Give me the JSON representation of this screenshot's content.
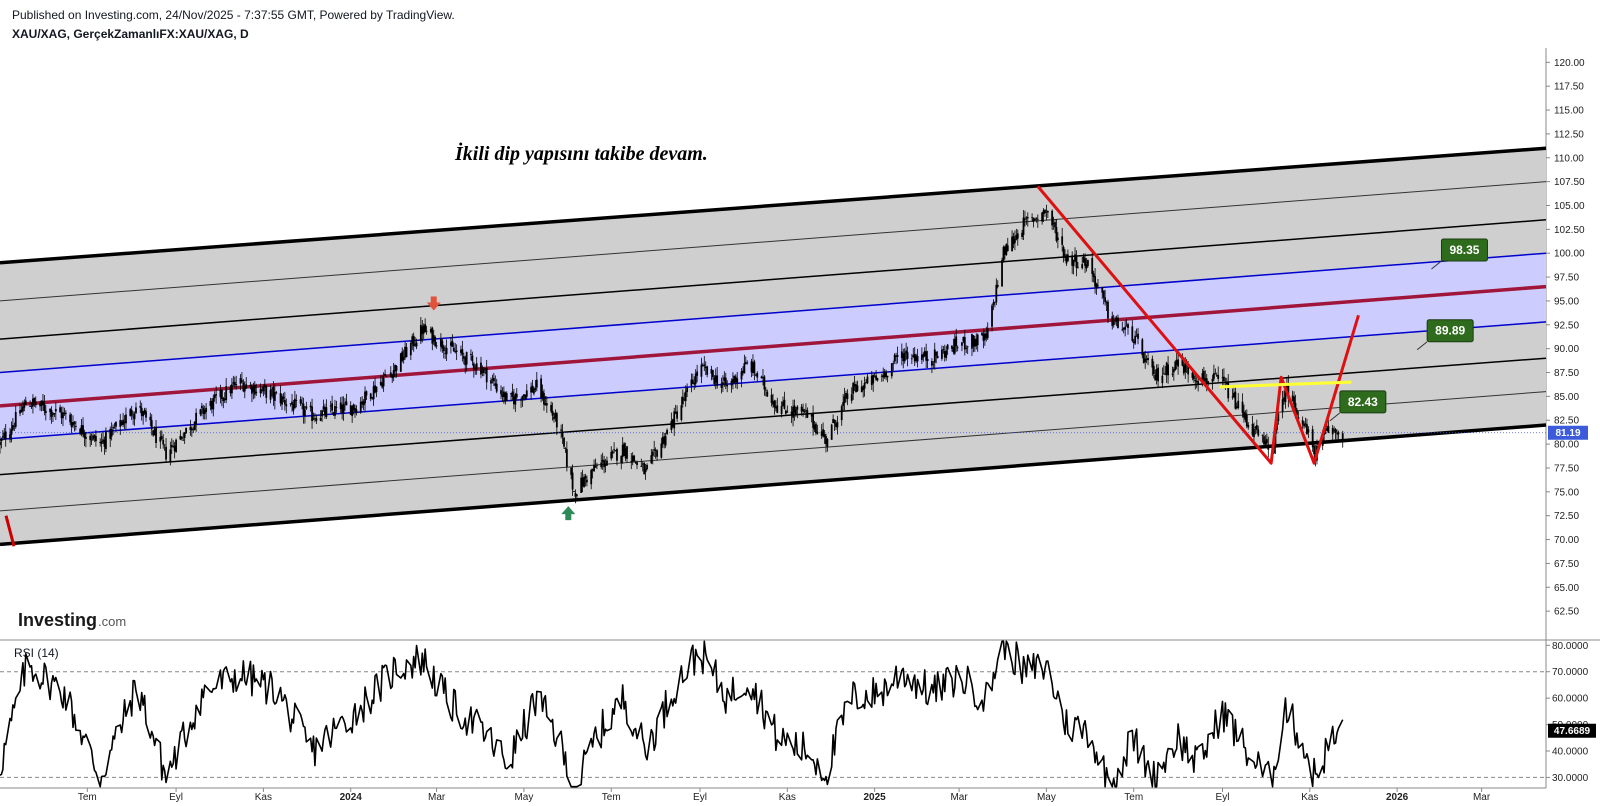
{
  "header": {
    "published": "Published on Investing.com, 24/Nov/2025 - 7:37:55 GMT, Powered by TradingView.",
    "symbol": "XAU/XAG, GerçekZamanlıFX:XAU/XAG, D"
  },
  "annotation": "İkili dip yapısını takibe devam.",
  "logo": {
    "main": "Investing",
    "suffix": ".com"
  },
  "colors": {
    "candle": "#000000",
    "channel_band": "#cfcfcf",
    "inner_band": "#ccccff",
    "blue_line": "#0000cc",
    "midline": "#a0163a",
    "red_pattern": "#dd1111",
    "neckline": "#ffff33",
    "label_green": "#2e6b1c",
    "price_tag": "#3b5bdb",
    "arrow_up": "#2e8b57",
    "arrow_down": "#e0533a"
  },
  "chart_data": [
    {
      "type": "candlestick",
      "symbol": "XAU/XAG",
      "timeframe": "D",
      "x_range": [
        "2023-05-01",
        "2026-04-15"
      ],
      "ylim": [
        60,
        121.5
      ],
      "y_ticks": [
        "120.00",
        "117.50",
        "115.00",
        "112.50",
        "110.00",
        "107.50",
        "105.00",
        "102.50",
        "100.00",
        "97.50",
        "95.00",
        "92.50",
        "90.00",
        "87.50",
        "85.00",
        "82.50",
        "80.00",
        "77.50",
        "75.00",
        "72.50",
        "70.00",
        "67.50",
        "65.00",
        "62.50"
      ],
      "x_ticks": [
        "Tem",
        "Eyl",
        "Kas",
        "2024",
        "Mar",
        "May",
        "Tem",
        "Eyl",
        "Kas",
        "2025",
        "Mar",
        "May",
        "Tem",
        "Eyl",
        "Kas",
        "2026",
        "Mar"
      ],
      "last_price": "81.19",
      "close_points": [
        [
          "2023-05-01",
          80.0
        ],
        [
          "2023-05-20",
          84.5
        ],
        [
          "2023-06-15",
          83.0
        ],
        [
          "2023-07-10",
          80.0
        ],
        [
          "2023-08-05",
          84.0
        ],
        [
          "2023-08-25",
          79.0
        ],
        [
          "2023-09-20",
          83.5
        ],
        [
          "2023-10-15",
          86.5
        ],
        [
          "2023-11-10",
          85.0
        ],
        [
          "2023-12-05",
          83.0
        ],
        [
          "2024-01-05",
          84.0
        ],
        [
          "2024-02-01",
          88.0
        ],
        [
          "2024-02-20",
          92.0
        ],
        [
          "2024-03-10",
          90.0
        ],
        [
          "2024-04-01",
          88.0
        ],
        [
          "2024-04-20",
          84.5
        ],
        [
          "2024-05-10",
          86.0
        ],
        [
          "2024-05-25",
          82.0
        ],
        [
          "2024-06-05",
          75.0
        ],
        [
          "2024-06-20",
          77.5
        ],
        [
          "2024-07-10",
          79.5
        ],
        [
          "2024-07-25",
          77.0
        ],
        [
          "2024-08-15",
          83.0
        ],
        [
          "2024-09-01",
          88.0
        ],
        [
          "2024-09-20",
          86.0
        ],
        [
          "2024-10-05",
          88.5
        ],
        [
          "2024-10-25",
          84.0
        ],
        [
          "2024-11-15",
          83.0
        ],
        [
          "2024-11-28",
          80.5
        ],
        [
          "2024-12-15",
          85.5
        ],
        [
          "2025-01-05",
          87.0
        ],
        [
          "2025-01-20",
          89.5
        ],
        [
          "2025-02-10",
          89.0
        ],
        [
          "2025-03-01",
          90.5
        ],
        [
          "2025-03-20",
          91.0
        ],
        [
          "2025-04-01",
          100.0
        ],
        [
          "2025-04-15",
          103.0
        ],
        [
          "2025-05-01",
          104.5
        ],
        [
          "2025-05-15",
          99.5
        ],
        [
          "2025-05-30",
          99.0
        ],
        [
          "2025-06-15",
          93.0
        ],
        [
          "2025-06-30",
          91.5
        ],
        [
          "2025-07-15",
          87.0
        ],
        [
          "2025-08-01",
          88.5
        ],
        [
          "2025-08-15",
          87.0
        ],
        [
          "2025-09-01",
          86.5
        ],
        [
          "2025-09-20",
          82.0
        ],
        [
          "2025-10-05",
          79.0
        ],
        [
          "2025-10-15",
          86.0
        ],
        [
          "2025-10-25",
          83.0
        ],
        [
          "2025-11-05",
          79.0
        ],
        [
          "2025-11-14",
          81.5
        ],
        [
          "2025-11-24",
          81.19
        ]
      ],
      "channel_lines": {
        "top": {
          "start": [
            "2023-05-01",
            99.0
          ],
          "end": [
            "2026-04-15",
            111.0
          ]
        },
        "l1": {
          "start": [
            "2023-05-01",
            95.0
          ],
          "end": [
            "2026-04-15",
            107.5
          ]
        },
        "l2": {
          "start": [
            "2023-05-01",
            91.0
          ],
          "end": [
            "2026-04-15",
            103.5
          ]
        },
        "blue_upper": {
          "start": [
            "2023-05-01",
            87.5
          ],
          "end": [
            "2026-04-15",
            100.0
          ]
        },
        "midline": {
          "start": [
            "2023-05-01",
            84.0
          ],
          "end": [
            "2026-04-15",
            96.5
          ]
        },
        "blue_lower": {
          "start": [
            "2023-05-01",
            80.5
          ],
          "end": [
            "2026-04-15",
            92.8
          ]
        },
        "l5": {
          "start": [
            "2023-05-01",
            76.8
          ],
          "end": [
            "2026-04-15",
            89.0
          ]
        },
        "l6": {
          "start": [
            "2023-05-01",
            73.0
          ],
          "end": [
            "2026-04-15",
            85.5
          ]
        },
        "bottom": {
          "start": [
            "2023-05-01",
            69.5
          ],
          "end": [
            "2026-04-15",
            82.0
          ]
        }
      },
      "labels": [
        {
          "text": "98.35",
          "x": "2026-01-25",
          "y": 98.35
        },
        {
          "text": "89.89",
          "x": "2026-01-15",
          "y": 89.89
        },
        {
          "text": "82.43",
          "x": "2025-11-15",
          "y": 82.43
        }
      ],
      "annotation": "İkili dip yapısını takibe devam."
    },
    {
      "type": "line",
      "title": "RSI (14)",
      "ylim": [
        26,
        82
      ],
      "y_ticks": [
        "80.0000",
        "70.0000",
        "60.0000",
        "50.0000",
        "40.0000",
        "30.0000"
      ],
      "levels": [
        70,
        30
      ],
      "last_value": "47.6689",
      "points": [
        [
          "2023-05-01",
          34
        ],
        [
          "2023-05-20",
          73
        ],
        [
          "2023-06-15",
          62
        ],
        [
          "2023-07-10",
          30
        ],
        [
          "2023-08-05",
          65
        ],
        [
          "2023-08-25",
          30
        ],
        [
          "2023-09-20",
          62
        ],
        [
          "2023-10-15",
          69
        ],
        [
          "2023-11-10",
          63
        ],
        [
          "2023-12-05",
          40
        ],
        [
          "2024-01-05",
          55
        ],
        [
          "2024-02-01",
          71
        ],
        [
          "2024-02-20",
          75
        ],
        [
          "2024-03-10",
          58
        ],
        [
          "2024-04-01",
          48
        ],
        [
          "2024-04-20",
          35
        ],
        [
          "2024-05-10",
          60
        ],
        [
          "2024-05-25",
          45
        ],
        [
          "2024-06-05",
          24
        ],
        [
          "2024-06-20",
          45
        ],
        [
          "2024-07-10",
          60
        ],
        [
          "2024-07-25",
          40
        ],
        [
          "2024-08-15",
          65
        ],
        [
          "2024-09-01",
          78
        ],
        [
          "2024-09-20",
          60
        ],
        [
          "2024-10-05",
          68
        ],
        [
          "2024-10-25",
          45
        ],
        [
          "2024-11-15",
          40
        ],
        [
          "2024-11-28",
          32
        ],
        [
          "2024-12-15",
          60
        ],
        [
          "2025-01-05",
          62
        ],
        [
          "2025-01-20",
          70
        ],
        [
          "2025-02-10",
          62
        ],
        [
          "2025-03-01",
          68
        ],
        [
          "2025-03-20",
          60
        ],
        [
          "2025-04-01",
          82
        ],
        [
          "2025-04-15",
          70
        ],
        [
          "2025-05-01",
          72
        ],
        [
          "2025-05-15",
          50
        ],
        [
          "2025-05-30",
          48
        ],
        [
          "2025-06-15",
          26
        ],
        [
          "2025-06-30",
          45
        ],
        [
          "2025-07-15",
          30
        ],
        [
          "2025-08-01",
          45
        ],
        [
          "2025-08-15",
          35
        ],
        [
          "2025-09-01",
          55
        ],
        [
          "2025-09-20",
          38
        ],
        [
          "2025-10-05",
          28
        ],
        [
          "2025-10-15",
          57
        ],
        [
          "2025-10-25",
          45
        ],
        [
          "2025-11-05",
          30
        ],
        [
          "2025-11-14",
          42
        ],
        [
          "2025-11-24",
          47.7
        ]
      ]
    }
  ]
}
